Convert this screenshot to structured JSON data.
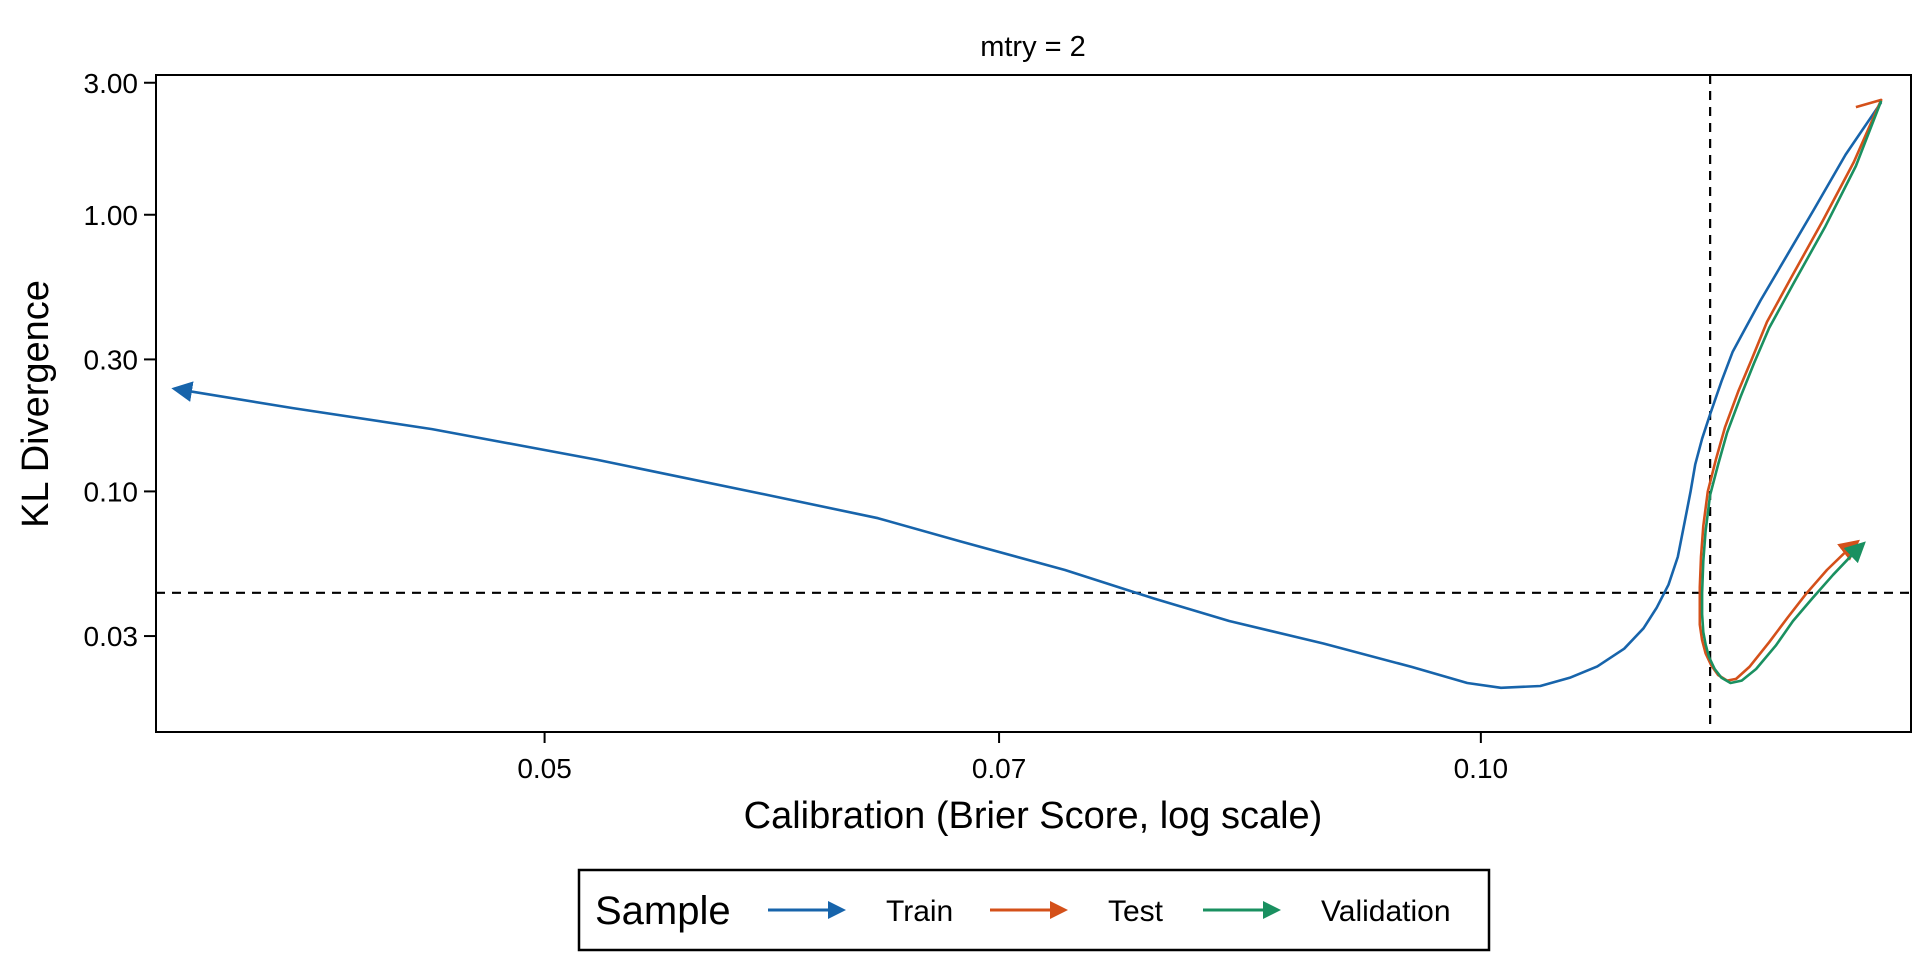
{
  "chart_data": {
    "type": "line",
    "title": "mtry = 2",
    "xlabel": "Calibration (Brier Score, log scale)",
    "ylabel": "KL Divergence",
    "x_scale": "log",
    "y_scale": "log",
    "xlim": [
      0.0375,
      0.1375
    ],
    "ylim": [
      0.0135,
      3.2
    ],
    "x_ticks": [
      {
        "value": 0.05,
        "label": "0.05"
      },
      {
        "value": 0.07,
        "label": "0.07"
      },
      {
        "value": 0.1,
        "label": "0.10"
      }
    ],
    "y_ticks": [
      {
        "value": 3.0,
        "label": "3.00"
      },
      {
        "value": 1.0,
        "label": "1.00"
      },
      {
        "value": 0.3,
        "label": "0.30"
      },
      {
        "value": 0.1,
        "label": "0.10"
      },
      {
        "value": 0.03,
        "label": "0.03"
      }
    ],
    "reference_lines": {
      "x": 0.1185,
      "y": 0.043
    },
    "grid": false,
    "legend": {
      "title": "Sample",
      "position": "bottom"
    },
    "series": [
      {
        "name": "Train",
        "color": "#1764AB",
        "points": [
          [
            0.1345,
            2.55
          ],
          [
            0.131,
            1.65
          ],
          [
            0.128,
            1.05
          ],
          [
            0.1255,
            0.72
          ],
          [
            0.123,
            0.49
          ],
          [
            0.1215,
            0.38
          ],
          [
            0.1205,
            0.32
          ],
          [
            0.1195,
            0.25
          ],
          [
            0.1185,
            0.19
          ],
          [
            0.1178,
            0.155
          ],
          [
            0.1172,
            0.125
          ],
          [
            0.1168,
            0.1
          ],
          [
            0.1163,
            0.078
          ],
          [
            0.1157,
            0.058
          ],
          [
            0.1149,
            0.046
          ],
          [
            0.1139,
            0.038
          ],
          [
            0.1128,
            0.032
          ],
          [
            0.1112,
            0.027
          ],
          [
            0.109,
            0.0233
          ],
          [
            0.1068,
            0.0212
          ],
          [
            0.1045,
            0.0198
          ],
          [
            0.1015,
            0.0195
          ],
          [
            0.099,
            0.0203
          ],
          [
            0.095,
            0.0232
          ],
          [
            0.089,
            0.0282
          ],
          [
            0.083,
            0.034
          ],
          [
            0.0785,
            0.041
          ],
          [
            0.0735,
            0.052
          ],
          [
            0.068,
            0.066
          ],
          [
            0.064,
            0.08
          ],
          [
            0.059,
            0.097
          ],
          [
            0.052,
            0.13
          ],
          [
            0.046,
            0.168
          ],
          [
            0.0415,
            0.2
          ],
          [
            0.038,
            0.235
          ]
        ]
      },
      {
        "name": "Test",
        "color": "#D4501A",
        "points": [
          [
            0.132,
            2.45
          ],
          [
            0.1345,
            2.6
          ],
          [
            0.1318,
            1.55
          ],
          [
            0.1288,
            0.95
          ],
          [
            0.1258,
            0.59
          ],
          [
            0.1236,
            0.41
          ],
          [
            0.1222,
            0.3
          ],
          [
            0.121,
            0.23
          ],
          [
            0.1198,
            0.17
          ],
          [
            0.119,
            0.13
          ],
          [
            0.1183,
            0.1
          ],
          [
            0.1179,
            0.075
          ],
          [
            0.1177,
            0.058
          ],
          [
            0.1176,
            0.045
          ],
          [
            0.1176,
            0.038
          ],
          [
            0.1176,
            0.033
          ],
          [
            0.1178,
            0.029
          ],
          [
            0.1181,
            0.026
          ],
          [
            0.1186,
            0.0235
          ],
          [
            0.1192,
            0.0217
          ],
          [
            0.12,
            0.0207
          ],
          [
            0.1208,
            0.021
          ],
          [
            0.122,
            0.0232
          ],
          [
            0.1238,
            0.0285
          ],
          [
            0.1255,
            0.035
          ],
          [
            0.1272,
            0.0425
          ],
          [
            0.1292,
            0.052
          ],
          [
            0.1315,
            0.063
          ],
          [
            0.1322,
            0.066
          ]
        ]
      },
      {
        "name": "Validation",
        "color": "#1A9060",
        "points": [
          [
            0.1345,
            2.58
          ],
          [
            0.132,
            1.5
          ],
          [
            0.129,
            0.9
          ],
          [
            0.126,
            0.56
          ],
          [
            0.1238,
            0.39
          ],
          [
            0.1224,
            0.29
          ],
          [
            0.1212,
            0.22
          ],
          [
            0.12,
            0.163
          ],
          [
            0.1192,
            0.125
          ],
          [
            0.1185,
            0.097
          ],
          [
            0.1181,
            0.072
          ],
          [
            0.1179,
            0.056
          ],
          [
            0.1178,
            0.043
          ],
          [
            0.1178,
            0.036
          ],
          [
            0.1179,
            0.031
          ],
          [
            0.1181,
            0.028
          ],
          [
            0.1184,
            0.0252
          ],
          [
            0.1189,
            0.0228
          ],
          [
            0.1195,
            0.0212
          ],
          [
            0.1203,
            0.0203
          ],
          [
            0.1213,
            0.0207
          ],
          [
            0.1226,
            0.0228
          ],
          [
            0.1244,
            0.0277
          ],
          [
            0.126,
            0.034
          ],
          [
            0.1278,
            0.041
          ],
          [
            0.1298,
            0.05
          ],
          [
            0.132,
            0.061
          ],
          [
            0.1328,
            0.065
          ]
        ]
      }
    ]
  }
}
